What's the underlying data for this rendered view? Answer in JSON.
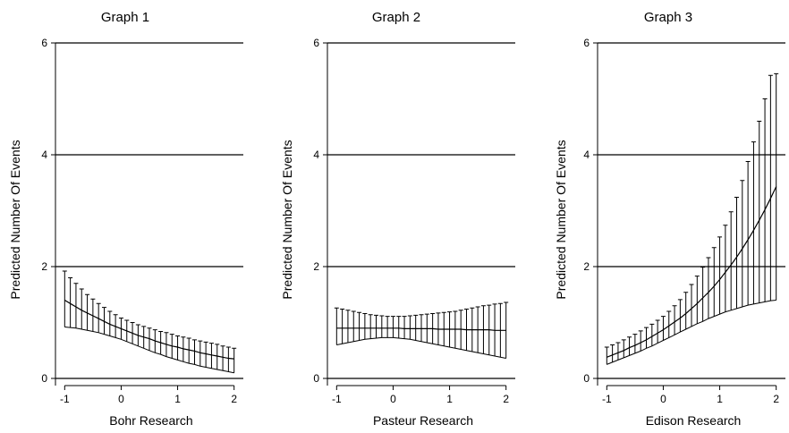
{
  "chart_data": [
    {
      "type": "line",
      "title": "Graph 1",
      "xlabel": "Bohr Research",
      "ylabel": "Predicted Number Of Events",
      "xlim": [
        -1.1,
        2.1
      ],
      "ylim": [
        0,
        6
      ],
      "xticks": [
        "-1",
        "0",
        "1",
        "2"
      ],
      "yticks": [
        "0",
        "2",
        "4",
        "6"
      ],
      "grid": "horizontal",
      "series": [
        {
          "x": [
            -1.0,
            -0.9,
            -0.8,
            -0.7,
            -0.6,
            -0.5,
            -0.4,
            -0.3,
            -0.2,
            -0.1,
            0.0,
            0.1,
            0.2,
            0.3,
            0.4,
            0.5,
            0.6,
            0.7,
            0.8,
            0.9,
            1.0,
            1.1,
            1.2,
            1.3,
            1.4,
            1.5,
            1.6,
            1.7,
            1.8,
            1.9,
            2.0
          ],
          "y": [
            1.4,
            1.34,
            1.28,
            1.22,
            1.17,
            1.12,
            1.07,
            1.02,
            0.97,
            0.93,
            0.89,
            0.85,
            0.81,
            0.77,
            0.74,
            0.71,
            0.67,
            0.64,
            0.61,
            0.58,
            0.56,
            0.53,
            0.51,
            0.49,
            0.46,
            0.44,
            0.42,
            0.4,
            0.38,
            0.36,
            0.35
          ],
          "lower": [
            0.92,
            0.91,
            0.9,
            0.88,
            0.86,
            0.84,
            0.82,
            0.79,
            0.76,
            0.73,
            0.7,
            0.66,
            0.62,
            0.58,
            0.54,
            0.5,
            0.46,
            0.43,
            0.39,
            0.36,
            0.33,
            0.3,
            0.27,
            0.25,
            0.22,
            0.2,
            0.18,
            0.16,
            0.14,
            0.12,
            0.1
          ],
          "upper": [
            1.92,
            1.8,
            1.7,
            1.6,
            1.5,
            1.42,
            1.34,
            1.27,
            1.2,
            1.14,
            1.08,
            1.04,
            1.0,
            0.96,
            0.93,
            0.9,
            0.87,
            0.84,
            0.82,
            0.79,
            0.76,
            0.74,
            0.72,
            0.69,
            0.67,
            0.65,
            0.63,
            0.61,
            0.58,
            0.56,
            0.54
          ]
        }
      ]
    },
    {
      "type": "line",
      "title": "Graph 2",
      "xlabel": "Pasteur Research",
      "ylabel": "Predicted Number Of Events",
      "xlim": [
        -1.1,
        2.1
      ],
      "ylim": [
        0,
        6
      ],
      "xticks": [
        "-1",
        "0",
        "1",
        "2"
      ],
      "yticks": [
        "0",
        "2",
        "4",
        "6"
      ],
      "grid": "horizontal",
      "series": [
        {
          "x": [
            -1.0,
            -0.9,
            -0.8,
            -0.7,
            -0.6,
            -0.5,
            -0.4,
            -0.3,
            -0.2,
            -0.1,
            0.0,
            0.1,
            0.2,
            0.3,
            0.4,
            0.5,
            0.6,
            0.7,
            0.8,
            0.9,
            1.0,
            1.1,
            1.2,
            1.3,
            1.4,
            1.5,
            1.6,
            1.7,
            1.8,
            1.9,
            2.0
          ],
          "y": [
            0.9,
            0.9,
            0.9,
            0.9,
            0.9,
            0.9,
            0.9,
            0.9,
            0.9,
            0.9,
            0.9,
            0.9,
            0.89,
            0.89,
            0.89,
            0.89,
            0.89,
            0.89,
            0.88,
            0.88,
            0.88,
            0.88,
            0.88,
            0.87,
            0.87,
            0.87,
            0.87,
            0.87,
            0.86,
            0.86,
            0.86
          ],
          "lower": [
            0.6,
            0.62,
            0.64,
            0.66,
            0.68,
            0.7,
            0.71,
            0.72,
            0.73,
            0.73,
            0.73,
            0.72,
            0.71,
            0.7,
            0.68,
            0.66,
            0.64,
            0.62,
            0.6,
            0.58,
            0.56,
            0.54,
            0.52,
            0.5,
            0.48,
            0.46,
            0.44,
            0.42,
            0.4,
            0.38,
            0.36
          ],
          "upper": [
            1.26,
            1.24,
            1.22,
            1.2,
            1.18,
            1.16,
            1.14,
            1.13,
            1.12,
            1.11,
            1.11,
            1.11,
            1.11,
            1.12,
            1.13,
            1.14,
            1.15,
            1.16,
            1.17,
            1.18,
            1.19,
            1.2,
            1.22,
            1.24,
            1.26,
            1.28,
            1.3,
            1.31,
            1.33,
            1.34,
            1.36
          ]
        }
      ]
    },
    {
      "type": "line",
      "title": "Graph 3",
      "xlabel": "Edison Research",
      "ylabel": "Predicted Number Of Events",
      "xlim": [
        -1.1,
        2.1
      ],
      "ylim": [
        0,
        6
      ],
      "xticks": [
        "-1",
        "0",
        "1",
        "2"
      ],
      "yticks": [
        "0",
        "2",
        "4",
        "6"
      ],
      "grid": "horizontal",
      "series": [
        {
          "x": [
            -1.0,
            -0.9,
            -0.8,
            -0.7,
            -0.6,
            -0.5,
            -0.4,
            -0.3,
            -0.2,
            -0.1,
            0.0,
            0.1,
            0.2,
            0.3,
            0.4,
            0.5,
            0.6,
            0.7,
            0.8,
            0.9,
            1.0,
            1.1,
            1.2,
            1.3,
            1.4,
            1.5,
            1.6,
            1.7,
            1.8,
            1.9,
            2.0
          ],
          "y": [
            0.38,
            0.42,
            0.46,
            0.5,
            0.55,
            0.59,
            0.64,
            0.69,
            0.75,
            0.81,
            0.87,
            0.94,
            1.01,
            1.08,
            1.16,
            1.25,
            1.34,
            1.44,
            1.54,
            1.65,
            1.77,
            1.9,
            2.03,
            2.17,
            2.32,
            2.48,
            2.65,
            2.83,
            3.02,
            3.22,
            3.43
          ],
          "lower": [
            0.25,
            0.29,
            0.33,
            0.37,
            0.41,
            0.45,
            0.49,
            0.54,
            0.58,
            0.63,
            0.68,
            0.73,
            0.78,
            0.83,
            0.88,
            0.93,
            0.98,
            1.02,
            1.07,
            1.11,
            1.15,
            1.19,
            1.22,
            1.25,
            1.28,
            1.31,
            1.33,
            1.35,
            1.37,
            1.39,
            1.4
          ],
          "upper": [
            0.56,
            0.6,
            0.64,
            0.69,
            0.74,
            0.79,
            0.85,
            0.91,
            0.97,
            1.04,
            1.11,
            1.2,
            1.3,
            1.41,
            1.54,
            1.68,
            1.83,
            1.99,
            2.16,
            2.34,
            2.53,
            2.74,
            2.98,
            3.24,
            3.54,
            3.88,
            4.23,
            4.6,
            5.0,
            5.42,
            5.45
          ]
        }
      ]
    }
  ]
}
